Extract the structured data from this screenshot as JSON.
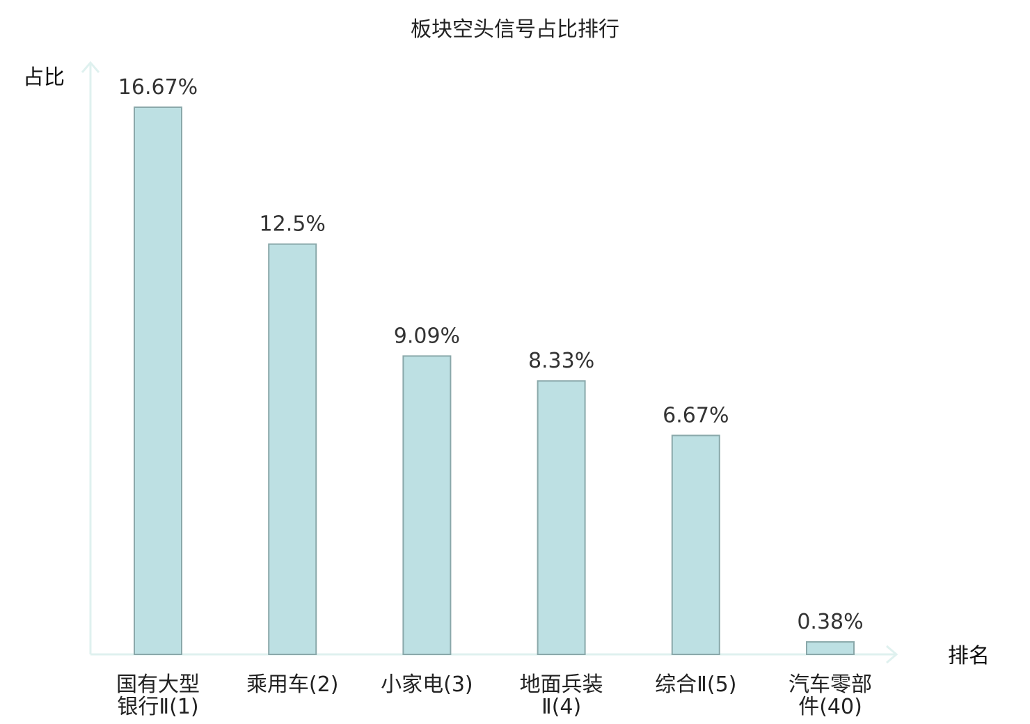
{
  "chart_data": {
    "type": "bar",
    "title": "板块空头信号占比排行",
    "ylabel": "占比",
    "xlabel": "排名",
    "ylim": [
      0,
      18
    ],
    "grid": false,
    "legend": "none",
    "categories": [
      [
        "国有大型",
        "银行Ⅱ(1)"
      ],
      [
        "乘用车(2)"
      ],
      [
        "小家电(3)"
      ],
      [
        "地面兵装",
        "Ⅱ(4)"
      ],
      [
        "综合Ⅱ(5)"
      ],
      [
        "汽车零部",
        "件(40)"
      ]
    ],
    "values": [
      16.67,
      12.5,
      9.09,
      8.33,
      6.67,
      0.38
    ],
    "value_labels": [
      "16.67%",
      "12.5%",
      "9.09%",
      "8.33%",
      "6.67%",
      "0.38%"
    ],
    "highlight_index": 5
  },
  "colors": {
    "bar_fill": "#bde0e3",
    "bar_stroke": "#8aa8aa",
    "axis": "#dff1ef",
    "highlight_text": "#e0141e",
    "text": "#222222"
  }
}
